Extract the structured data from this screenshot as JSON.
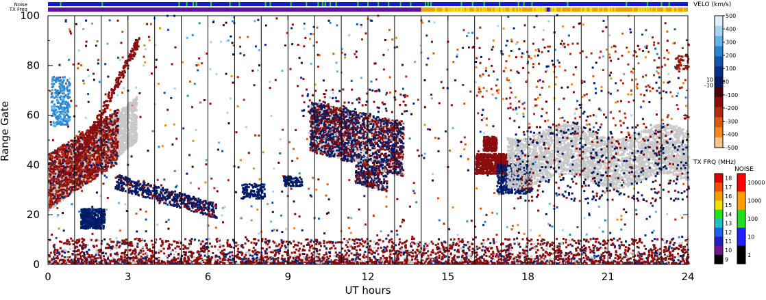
{
  "chart_data": {
    "type": "heatmap",
    "title": "",
    "xlabel": "UT hours",
    "ylabel": "Range Gate",
    "xlim": [
      0,
      24
    ],
    "ylim": [
      0,
      100
    ],
    "x_ticks": [
      "0",
      "3",
      "6",
      "9",
      "12",
      "15",
      "18",
      "21",
      "24"
    ],
    "y_ticks": [
      "0",
      "20",
      "40",
      "60",
      "80",
      "100"
    ],
    "top_strips": {
      "noise_label": "Noise",
      "freq_label": "TX Freq"
    },
    "velocity_colorbar": {
      "title": "VELO (km/s)",
      "ticks": [
        "500",
        "400",
        "300",
        "200",
        "100",
        "10",
        "0",
        "-10",
        "-100",
        "-200",
        "-300",
        "-400",
        "-500"
      ],
      "colors": [
        "#dceffb",
        "#a6d4f2",
        "#63b3e6",
        "#2a86cf",
        "#1155b0",
        "#08308a",
        "#001a66",
        "#4a0008",
        "#8a0c0c",
        "#b22a10",
        "#d85a10",
        "#f08a20",
        "#f6c48a"
      ]
    },
    "freq_colorbar": {
      "title": "TX FRQ (MHz)",
      "ticks": [
        "18",
        "17",
        "16",
        "15",
        "14",
        "13",
        "12",
        "11",
        "10",
        "9"
      ],
      "colors": [
        "#e00000",
        "#f05000",
        "#f0a000",
        "#f0e000",
        "#20e020",
        "#20c0c0",
        "#2060f0",
        "#2020c0",
        "#701890",
        "#000000"
      ]
    },
    "noise_colorbar": {
      "title": "NOISE",
      "ticks": [
        "10000",
        "1000",
        "100",
        "10",
        "1"
      ],
      "colors": [
        "#ff0000",
        "#ffa000",
        "#20e020",
        "#2020ff",
        "#000000"
      ]
    },
    "ground_scatter_color": "#c8c8c8",
    "features": [
      {
        "name": "ground scatter band",
        "color": "gray",
        "x": [
          0.0,
          3.2
        ],
        "y": [
          20,
          55
        ],
        "slope": 9
      },
      {
        "name": "ground scatter band",
        "color": "gray",
        "x": [
          17.2,
          24.0
        ],
        "y": [
          30,
          55
        ]
      },
      {
        "name": "negative velocity patch",
        "color": "red",
        "x": [
          0.0,
          2.5
        ],
        "y": [
          25,
          50
        ]
      },
      {
        "name": "positive velocity patch",
        "color": "blue",
        "x": [
          1.2,
          2.1
        ],
        "y": [
          14,
          22
        ]
      },
      {
        "name": "mixed velocity cluster",
        "color": "mixed",
        "x": [
          9.8,
          13.3
        ],
        "y": [
          33,
          65
        ]
      },
      {
        "name": "mixed velocity cluster",
        "color": "mixed",
        "x": [
          16.0,
          18.0
        ],
        "y": [
          28,
          52
        ]
      },
      {
        "name": "near-range echoes",
        "color": "red",
        "x": [
          0.0,
          24.0
        ],
        "y": [
          0,
          10
        ]
      }
    ]
  }
}
